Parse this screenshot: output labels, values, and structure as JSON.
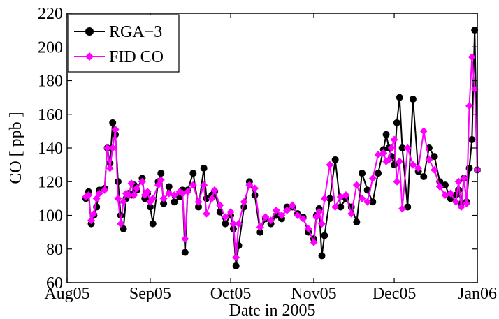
{
  "chart_data": {
    "type": "line",
    "xlabel": "Date in 2005",
    "ylabel": "CO  [ ppb ]",
    "x_ticks": [
      "Aug05",
      "Sep05",
      "Oct05",
      "Nov05",
      "Dec05",
      "Jan06"
    ],
    "x_tick_dates": [
      "2005-08-01",
      "2005-09-01",
      "2005-10-01",
      "2005-11-01",
      "2005-12-01",
      "2006-01-01"
    ],
    "xlim": [
      "2005-08-01",
      "2006-01-01"
    ],
    "ylim": [
      60,
      220
    ],
    "y_ticks": [
      60,
      80,
      100,
      120,
      140,
      160,
      180,
      200,
      220
    ],
    "grid": false,
    "legend": "top-left",
    "series": [
      {
        "name": "RGA−3",
        "color": "#000000",
        "marker": "circle",
        "x": [
          "2005-08-08",
          "2005-08-09",
          "2005-08-10",
          "2005-08-11",
          "2005-08-12",
          "2005-08-13",
          "2005-08-15",
          "2005-08-16",
          "2005-08-17",
          "2005-08-18",
          "2005-08-19",
          "2005-08-20",
          "2005-08-21",
          "2005-08-22",
          "2005-08-23",
          "2005-08-24",
          "2005-08-25",
          "2005-08-26",
          "2005-08-27",
          "2005-08-29",
          "2005-08-30",
          "2005-08-31",
          "2005-09-01",
          "2005-09-02",
          "2005-09-04",
          "2005-09-05",
          "2005-09-06",
          "2005-09-08",
          "2005-09-10",
          "2005-09-12",
          "2005-09-13",
          "2005-09-14",
          "2005-09-15",
          "2005-09-17",
          "2005-09-19",
          "2005-09-21",
          "2005-09-22",
          "2005-09-24",
          "2005-09-25",
          "2005-09-27",
          "2005-09-29",
          "2005-10-01",
          "2005-10-02",
          "2005-10-03",
          "2005-10-04",
          "2005-10-06",
          "2005-10-08",
          "2005-10-10",
          "2005-10-12",
          "2005-10-14",
          "2005-10-16",
          "2005-10-18",
          "2005-10-20",
          "2005-10-22",
          "2005-10-24",
          "2005-10-26",
          "2005-10-28",
          "2005-10-30",
          "2005-11-01",
          "2005-11-02",
          "2005-11-03",
          "2005-11-04",
          "2005-11-05",
          "2005-11-07",
          "2005-11-09",
          "2005-11-11",
          "2005-11-13",
          "2005-11-15",
          "2005-11-17",
          "2005-11-19",
          "2005-11-21",
          "2005-11-23",
          "2005-11-25",
          "2005-11-27",
          "2005-11-28",
          "2005-11-29",
          "2005-11-30",
          "2005-12-01",
          "2005-12-02",
          "2005-12-03",
          "2005-12-04",
          "2005-12-06",
          "2005-12-08",
          "2005-12-10",
          "2005-12-12",
          "2005-12-14",
          "2005-12-16",
          "2005-12-18",
          "2005-12-20",
          "2005-12-22",
          "2005-12-24",
          "2005-12-25",
          "2005-12-26",
          "2005-12-27",
          "2005-12-28",
          "2005-12-29",
          "2005-12-30",
          "2005-12-31",
          "2006-01-01"
        ],
        "y": [
          110,
          114,
          95,
          100,
          105,
          115,
          116,
          140,
          131,
          155,
          148,
          120,
          100,
          92,
          110,
          113,
          112,
          118,
          115,
          122,
          110,
          113,
          105,
          95,
          120,
          125,
          107,
          117,
          108,
          111,
          115,
          78,
          115,
          125,
          105,
          128,
          110,
          112,
          114,
          102,
          95,
          100,
          92,
          70,
          82,
          105,
          120,
          112,
          90,
          98,
          95,
          100,
          98,
          105,
          105,
          101,
          99,
          90,
          86,
          100,
          104,
          76,
          88,
          110,
          133,
          105,
          110,
          105,
          96,
          125,
          115,
          108,
          125,
          139,
          148,
          140,
          135,
          130,
          155,
          170,
          140,
          105,
          169,
          126,
          123,
          140,
          135,
          120,
          118,
          110,
          112,
          115,
          107,
          122,
          108,
          128,
          145,
          210,
          127
        ]
      },
      {
        "name": "FID CO",
        "color": "#ff00ff",
        "marker": "diamond",
        "x": [
          "2005-08-08",
          "2005-08-09",
          "2005-08-10",
          "2005-08-11",
          "2005-08-12",
          "2005-08-13",
          "2005-08-15",
          "2005-08-16",
          "2005-08-17",
          "2005-08-18",
          "2005-08-19",
          "2005-08-20",
          "2005-08-21",
          "2005-08-22",
          "2005-08-23",
          "2005-08-24",
          "2005-08-25",
          "2005-08-26",
          "2005-08-27",
          "2005-08-29",
          "2005-08-30",
          "2005-08-31",
          "2005-09-01",
          "2005-09-02",
          "2005-09-04",
          "2005-09-05",
          "2005-09-06",
          "2005-09-08",
          "2005-09-10",
          "2005-09-12",
          "2005-09-13",
          "2005-09-14",
          "2005-09-15",
          "2005-09-17",
          "2005-09-19",
          "2005-09-21",
          "2005-09-22",
          "2005-09-24",
          "2005-09-25",
          "2005-09-27",
          "2005-09-29",
          "2005-10-01",
          "2005-10-02",
          "2005-10-03",
          "2005-10-04",
          "2005-10-06",
          "2005-10-08",
          "2005-10-10",
          "2005-10-12",
          "2005-10-14",
          "2005-10-16",
          "2005-10-18",
          "2005-10-20",
          "2005-10-22",
          "2005-10-24",
          "2005-10-26",
          "2005-10-28",
          "2005-10-30",
          "2005-11-01",
          "2005-11-02",
          "2005-11-03",
          "2005-11-04",
          "2005-11-05",
          "2005-11-07",
          "2005-11-09",
          "2005-11-11",
          "2005-11-13",
          "2005-11-15",
          "2005-11-17",
          "2005-11-19",
          "2005-11-21",
          "2005-11-23",
          "2005-11-25",
          "2005-11-27",
          "2005-11-28",
          "2005-11-29",
          "2005-11-30",
          "2005-12-01",
          "2005-12-02",
          "2005-12-03",
          "2005-12-04",
          "2005-12-06",
          "2005-12-08",
          "2005-12-10",
          "2005-12-12",
          "2005-12-14",
          "2005-12-16",
          "2005-12-18",
          "2005-12-20",
          "2005-12-22",
          "2005-12-24",
          "2005-12-25",
          "2005-12-26",
          "2005-12-27",
          "2005-12-28",
          "2005-12-29",
          "2005-12-30",
          "2005-12-31",
          "2006-01-01"
        ],
        "y": [
          111,
          112,
          97,
          101,
          110,
          113,
          115,
          140,
          128,
          140,
          151,
          110,
          95,
          108,
          113,
          112,
          119,
          112,
          116,
          120,
          112,
          114,
          108,
          110,
          118,
          121,
          110,
          113,
          112,
          114,
          113,
          86,
          114,
          118,
          108,
          118,
          101,
          110,
          115,
          106,
          99,
          102,
          95,
          75,
          95,
          108,
          118,
          116,
          93,
          99,
          97,
          103,
          100,
          103,
          106,
          100,
          98,
          92,
          84,
          99,
          102,
          95,
          110,
          130,
          105,
          111,
          112,
          101,
          118,
          110,
          108,
          122,
          136,
          137,
          132,
          133,
          140,
          145,
          120,
          132,
          104,
          140,
          130,
          128,
          150,
          133,
          127,
          117,
          112,
          113,
          108,
          120,
          105,
          122,
          107,
          165,
          194,
          175,
          127
        ]
      }
    ]
  }
}
